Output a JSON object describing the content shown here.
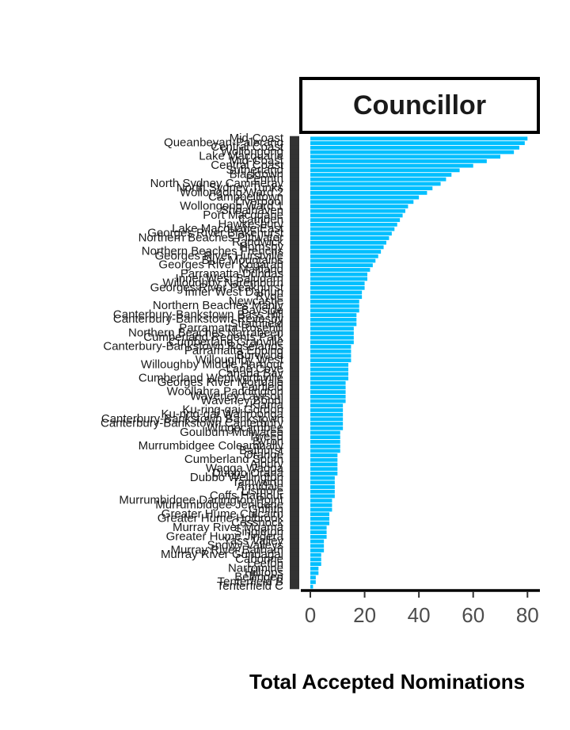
{
  "chart_data": {
    "type": "bar",
    "orientation": "horizontal",
    "facet_title": "Councillor",
    "xlabel": "Total Accepted Nominations",
    "color": "#00bfff",
    "xlim": [
      -3.5,
      84
    ],
    "xticks": [
      0,
      20,
      40,
      60,
      80
    ],
    "categories": [
      "Mid-Coast",
      "Queanbeyan-Palerang",
      "Central Coast",
      "Wollongong",
      "Lake Macquarie",
      "Mid-Coast",
      "Central Coast",
      "Sutherland",
      "Blacktown",
      "Penrith",
      "North Sydney Cammeray",
      "North Sydney Tunks",
      "Wollongong Ward 2",
      "Campbelltown",
      "Liverpool",
      "Wollongong Ward 1",
      "Shoalhaven",
      "Port Macquarie",
      "Camden",
      "Hawkesbury",
      "Lake Macquarie East",
      "Georges River Blakehurst",
      "Northern Beaches Pittwater",
      "Randwick",
      "Hornsby",
      "Northern Beaches Frenchs",
      "Georges River Hurstville",
      "Blue Mountains",
      "Georges River Kogarah",
      "Maitland",
      "Parramatta Dundas",
      "Inner West Baludarri",
      "Willoughby Naremburn",
      "Georges River Peakhurst",
      "Inner West Damun",
      "Ryde",
      "Newcastle",
      "Northern Beaches Manly",
      "Bayside",
      "Canterbury-Bankstown Bass Hill",
      "Canterbury-Bankstown Revesby",
      "Strathfield",
      "Parramatta Rosehill",
      "Northern Beaches Narrabeen",
      "Cumberland Regents Park",
      "Cumberland Granville",
      "Canterbury-Bankstown Roselands",
      "Parramatta Epping",
      "Burwood",
      "Willoughby West",
      "Willoughby Middle Harbour",
      "Lane Cove",
      "Canada Bay",
      "Cumberland Wentworthville",
      "Georges River Mortdale",
      "Fairfield",
      "Woollahra Paddington",
      "Waverley Lawson",
      "Waverley Bondi",
      "Kiama",
      "Ku-ring-gai Gordon",
      "Ku-ring-gai Wahroonga",
      "Canterbury-Bankstown Bankstown",
      "Canterbury-Bankstown Canterbury",
      "Wingecarribee",
      "Goulburn Mulwaree",
      "Tweed",
      "Byron",
      "Murrumbidgee Coleambally",
      "Bathurst",
      "Orange",
      "Cumberland South",
      "Albury",
      "Wagga Wagga",
      "Dubbo Orana",
      "Dubbo Wellington",
      "Tamworth",
      "Armidale",
      "Lismore",
      "Coffs Harbour",
      "Murrumbidgee Darlington Point",
      "Murrumbidgee Jerilderie",
      "Griffith",
      "Greater Hume Culcairn",
      "Greater Hume Holbrook",
      "Cessnock",
      "Murray River Moama",
      "Singleton",
      "Greater Hume Jindera",
      "Yass Valley",
      "Snowy Valleys",
      "Murray River Barham",
      "Murray River Gundagai",
      "Cabonne",
      "Leeton",
      "Narromine",
      "Hilltops",
      "Bellingen",
      "Tenterfield B",
      "Tenterfield C"
    ],
    "values": [
      80,
      79,
      77,
      75,
      70,
      65,
      60,
      55,
      52,
      50,
      48,
      45,
      43,
      40,
      38,
      36,
      35,
      34,
      33,
      32,
      31,
      30,
      29,
      28,
      27,
      26,
      25,
      24,
      23,
      22,
      21,
      21,
      20,
      20,
      19,
      19,
      18,
      18,
      18,
      17,
      17,
      17,
      16,
      16,
      16,
      16,
      15,
      15,
      15,
      15,
      14,
      14,
      14,
      14,
      13,
      13,
      13,
      13,
      13,
      12,
      12,
      12,
      12,
      12,
      12,
      11,
      11,
      11,
      11,
      11,
      10,
      10,
      10,
      10,
      10,
      9,
      9,
      9,
      9,
      9,
      8,
      8,
      8,
      7,
      7,
      7,
      6,
      6,
      6,
      5,
      5,
      5,
      4,
      4,
      4,
      3,
      3,
      2,
      2,
      1
    ]
  }
}
